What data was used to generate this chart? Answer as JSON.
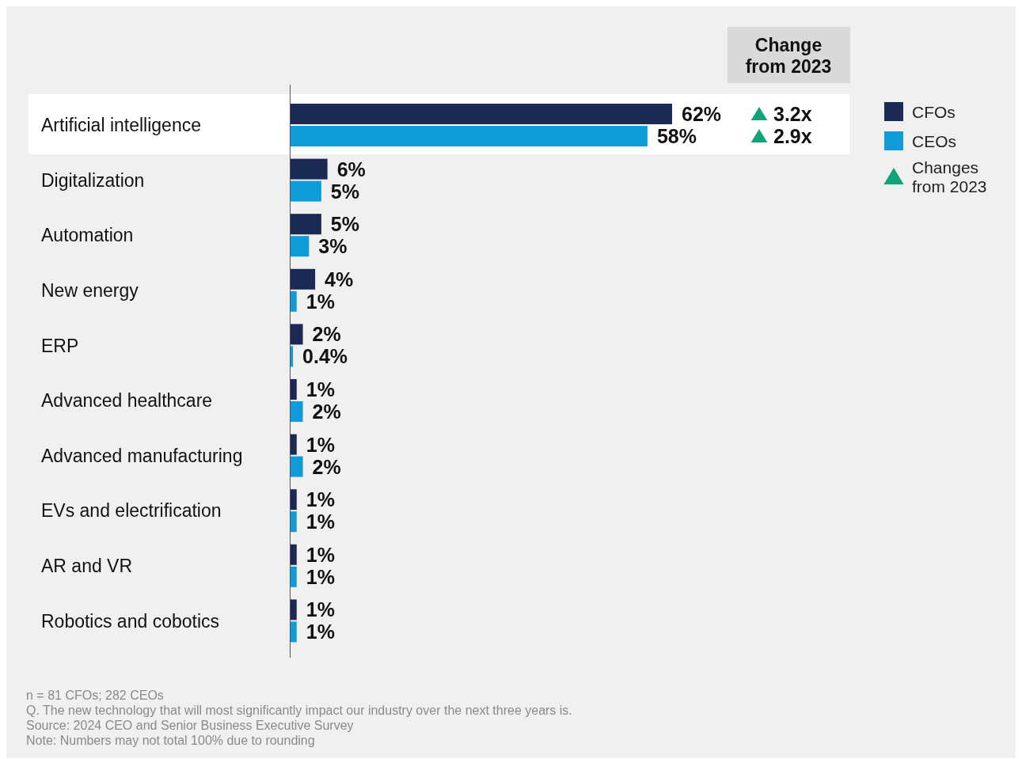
{
  "chart_data": {
    "type": "bar",
    "orientation": "horizontal",
    "categories": [
      "Artificial intelligence",
      "Digitalization",
      "Automation",
      "New energy",
      "ERP",
      "Advanced healthcare",
      "Advanced manufacturing",
      "EVs and electrification",
      "AR and VR",
      "Robotics and cobotics"
    ],
    "series": [
      {
        "name": "CFOs",
        "color": "#1b2a55",
        "values": [
          62,
          6,
          5,
          4,
          2,
          1,
          1,
          1,
          1,
          1
        ],
        "value_labels": [
          "62%",
          "6%",
          "5%",
          "4%",
          "2%",
          "1%",
          "1%",
          "1%",
          "1%",
          "1%"
        ]
      },
      {
        "name": "CEOs",
        "color": "#0f9bd7",
        "values": [
          58,
          5,
          3,
          1,
          0.4,
          2,
          2,
          1,
          1,
          1
        ],
        "value_labels": [
          "58%",
          "5%",
          "3%",
          "1%",
          "0.4%",
          "2%",
          "2%",
          "1%",
          "1%",
          "1%"
        ]
      }
    ],
    "bands": [
      {
        "axis": "y",
        "from": "Artificial intelligence",
        "to": "Artificial intelligence",
        "color": "#ffffff"
      }
    ],
    "legend": "right",
    "annotations": [
      "Change from 2023",
      "3.2x",
      "2.9x",
      "Changes from 2023",
      "n = 81 CFOs; 282 CEOs",
      "Q. The new technology that will most significantly impact our industry over the next three years is.",
      "Source: 2024 CEO and Senior Business Executive Survey",
      "Note: Numbers may not total 100% due to rounding"
    ]
  }
}
